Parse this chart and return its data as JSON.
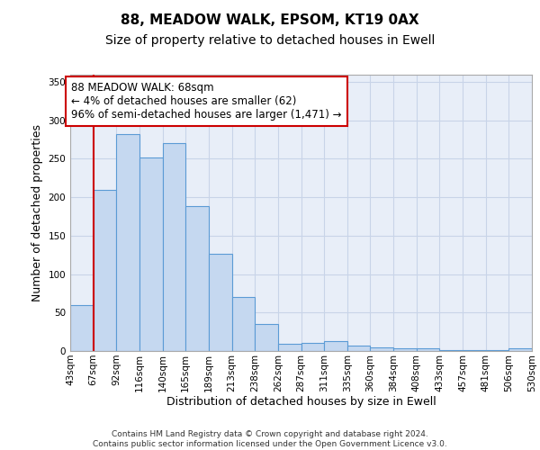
{
  "title1": "88, MEADOW WALK, EPSOM, KT19 0AX",
  "title2": "Size of property relative to detached houses in Ewell",
  "xlabel": "Distribution of detached houses by size in Ewell",
  "ylabel": "Number of detached properties",
  "categories": [
    "43sqm",
    "67sqm",
    "92sqm",
    "116sqm",
    "140sqm",
    "165sqm",
    "189sqm",
    "213sqm",
    "238sqm",
    "262sqm",
    "287sqm",
    "311sqm",
    "335sqm",
    "360sqm",
    "384sqm",
    "408sqm",
    "433sqm",
    "457sqm",
    "481sqm",
    "506sqm",
    "530sqm"
  ],
  "bar_values": [
    60,
    210,
    282,
    252,
    270,
    188,
    126,
    70,
    35,
    9,
    11,
    13,
    7,
    5,
    3,
    4,
    1,
    1,
    1,
    4
  ],
  "bar_color": "#c5d8f0",
  "bar_edge_color": "#5b9bd5",
  "ylim": [
    0,
    360
  ],
  "yticks": [
    0,
    50,
    100,
    150,
    200,
    250,
    300,
    350
  ],
  "annotation_text": "88 MEADOW WALK: 68sqm\n← 4% of detached houses are smaller (62)\n96% of semi-detached houses are larger (1,471) →",
  "annotation_box_facecolor": "#ffffff",
  "annotation_box_edge": "#cc0000",
  "vline_color": "#cc0000",
  "grid_color": "#c8d4e8",
  "background_color": "#e8eef8",
  "footer_text": "Contains HM Land Registry data © Crown copyright and database right 2024.\nContains public sector information licensed under the Open Government Licence v3.0.",
  "title1_fontsize": 11,
  "title2_fontsize": 10,
  "xlabel_fontsize": 9,
  "ylabel_fontsize": 9,
  "tick_fontsize": 7.5,
  "annotation_fontsize": 8.5,
  "footer_fontsize": 6.5
}
